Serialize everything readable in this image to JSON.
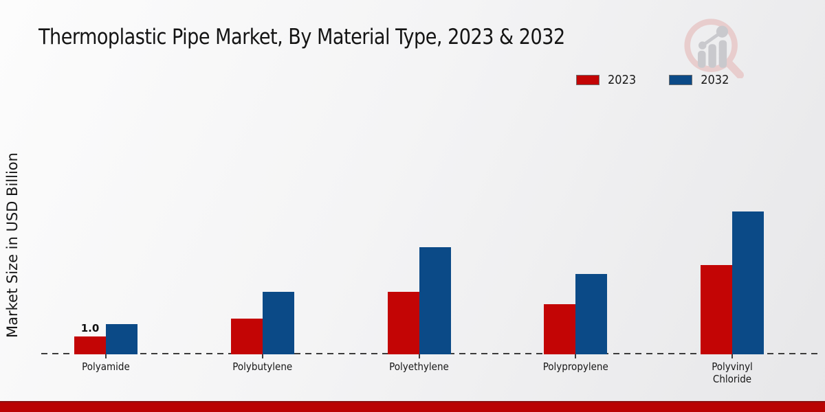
{
  "title": "Thermoplastic Pipe Market, By Material Type, 2023 & 2032",
  "y_axis_label": "Market Size in USD Billion",
  "legend": [
    {
      "label": "2023",
      "color": "#c30505"
    },
    {
      "label": "2032",
      "color": "#0b4a87"
    }
  ],
  "colors": {
    "series_2023": "#c30505",
    "series_2032": "#0b4a87",
    "footer_band": "#b90303",
    "baseline": "#3c3c3c",
    "text": "#141414",
    "logo_ring": "#e8cdcd",
    "logo_bars": "#c9c9cd"
  },
  "logo_name": "market-research-future-logo",
  "chart_data": {
    "type": "bar",
    "title": "Thermoplastic Pipe Market, By Material Type, 2023 & 2032",
    "ylabel": "Market Size in USD Billion",
    "xlabel": "",
    "categories": [
      "Polyamide",
      "Polybutylene",
      "Polyethylene",
      "Polypropylene",
      "Polyvinyl Chloride"
    ],
    "series": [
      {
        "name": "2023",
        "color": "#c30505",
        "values": [
          1.0,
          2.0,
          3.5,
          2.8,
          5.0
        ]
      },
      {
        "name": "2032",
        "color": "#0b4a87",
        "values": [
          1.7,
          3.5,
          6.0,
          4.5,
          8.0
        ]
      }
    ],
    "annotations": [
      {
        "text": "1.0",
        "category_index": 0,
        "series_index": 0
      }
    ],
    "units": "USD Billion",
    "ylim": [
      0,
      9
    ],
    "grid": false,
    "y_axis_ticks_visible": false,
    "baseline_style": "dashed",
    "legend_position": "top-right"
  }
}
